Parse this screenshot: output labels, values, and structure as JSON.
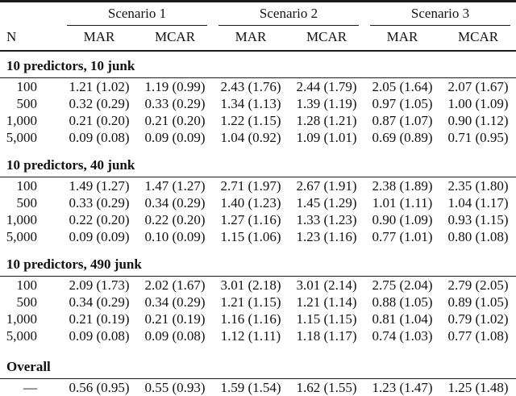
{
  "table": {
    "corner_header": "N",
    "scenario_labels": [
      "Scenario 1",
      "Scenario 2",
      "Scenario 3"
    ],
    "sub_headers": [
      "MAR",
      "MCAR",
      "MAR",
      "MCAR",
      "MAR",
      "MCAR"
    ],
    "sections": [
      {
        "title": "10 predictors, 10 junk",
        "rows": [
          {
            "n": "100",
            "values": [
              "1.21 (1.02)",
              "1.19 (0.99)",
              "2.43 (1.76)",
              "2.44 (1.79)",
              "2.05 (1.64)",
              "2.07 (1.67)"
            ]
          },
          {
            "n": "500",
            "values": [
              "0.32 (0.29)",
              "0.33 (0.29)",
              "1.34 (1.13)",
              "1.39 (1.19)",
              "0.97 (1.05)",
              "1.00 (1.09)"
            ]
          },
          {
            "n": "1,000",
            "values": [
              "0.21 (0.20)",
              "0.21 (0.20)",
              "1.22 (1.15)",
              "1.28 (1.21)",
              "0.87 (1.07)",
              "0.90 (1.12)"
            ]
          },
          {
            "n": "5,000",
            "values": [
              "0.09 (0.08)",
              "0.09 (0.09)",
              "1.04 (0.92)",
              "1.09 (1.01)",
              "0.69 (0.89)",
              "0.71 (0.95)"
            ]
          }
        ]
      },
      {
        "title": "10 predictors, 40 junk",
        "rows": [
          {
            "n": "100",
            "values": [
              "1.49 (1.27)",
              "1.47 (1.27)",
              "2.71 (1.97)",
              "2.67 (1.91)",
              "2.38 (1.89)",
              "2.35 (1.80)"
            ]
          },
          {
            "n": "500",
            "values": [
              "0.33 (0.29)",
              "0.34 (0.29)",
              "1.40 (1.23)",
              "1.45 (1.29)",
              "1.01 (1.11)",
              "1.04 (1.17)"
            ]
          },
          {
            "n": "1,000",
            "values": [
              "0.22 (0.20)",
              "0.22 (0.20)",
              "1.27 (1.16)",
              "1.33 (1.23)",
              "0.90 (1.09)",
              "0.93 (1.15)"
            ]
          },
          {
            "n": "5,000",
            "values": [
              "0.09 (0.09)",
              "0.10 (0.09)",
              "1.15 (1.06)",
              "1.23 (1.16)",
              "0.77 (1.01)",
              "0.80 (1.08)"
            ]
          }
        ]
      },
      {
        "title": "10 predictors, 490 junk",
        "rows": [
          {
            "n": "100",
            "values": [
              "2.09 (1.73)",
              "2.02 (1.67)",
              "3.01 (2.18)",
              "3.01 (2.14)",
              "2.75 (2.04)",
              "2.79 (2.05)"
            ]
          },
          {
            "n": "500",
            "values": [
              "0.34 (0.29)",
              "0.34 (0.29)",
              "1.21 (1.15)",
              "1.21 (1.14)",
              "0.88 (1.05)",
              "0.89 (1.05)"
            ]
          },
          {
            "n": "1,000",
            "values": [
              "0.21 (0.19)",
              "0.21 (0.19)",
              "1.16 (1.16)",
              "1.15 (1.15)",
              "0.81 (1.04)",
              "0.79 (1.02)"
            ]
          },
          {
            "n": "5,000",
            "values": [
              "0.09 (0.08)",
              "0.09 (0.08)",
              "1.12 (1.11)",
              "1.18 (1.17)",
              "0.74 (1.03)",
              "0.77 (1.08)"
            ]
          }
        ]
      },
      {
        "title": "Overall",
        "rows": [
          {
            "n": "—",
            "values": [
              "0.56 (0.95)",
              "0.55 (0.93)",
              "1.59 (1.54)",
              "1.62 (1.55)",
              "1.23 (1.47)",
              "1.25 (1.48)"
            ]
          }
        ]
      }
    ],
    "colors": {
      "rule": "#1b1b1b",
      "text": "#111111",
      "background": "#ffffff"
    }
  }
}
